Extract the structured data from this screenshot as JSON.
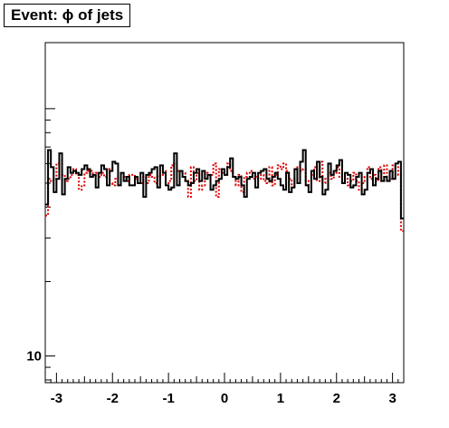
{
  "chart_data": {
    "type": "line",
    "title": "Event: ϕ of jets",
    "xlabel": "",
    "ylabel": "",
    "xlim": [
      -3.2,
      3.2
    ],
    "yscale": "log",
    "ylim": [
      7.8,
      185
    ],
    "xticks": [
      -3,
      -2,
      -1,
      0,
      1,
      2,
      3
    ],
    "xtick_labels": [
      "-3",
      "-2",
      "-1",
      "0",
      "1",
      "2",
      "3"
    ],
    "yticks": [
      10
    ],
    "ytick_labels": [
      "10"
    ],
    "grid": false,
    "series": [
      {
        "style": "solid",
        "color": "#000000",
        "bin_edges_from": -3.2,
        "bin_width": 0.1,
        "values": [
          41,
          68,
          58,
          46,
          52,
          66,
          45,
          52,
          58,
          55,
          56,
          55,
          54,
          57,
          59,
          57,
          53,
          54,
          48,
          55,
          59,
          57,
          49,
          56,
          61,
          60,
          49,
          55,
          51,
          53,
          49,
          49,
          53,
          50,
          55,
          44,
          54,
          55,
          57,
          58,
          48,
          59,
          55,
          49,
          47,
          48,
          66,
          49,
          56,
          53,
          51,
          49,
          50,
          55,
          57,
          51,
          56,
          52,
          54,
          47,
          49,
          51,
          52,
          57,
          54,
          58,
          63,
          53,
          52,
          53,
          49,
          44,
          52,
          53,
          55,
          48,
          55,
          56,
          57,
          52,
          51,
          53,
          55,
          52,
          49,
          47,
          55,
          46,
          48,
          57,
          50,
          61,
          68,
          49,
          46,
          56,
          52,
          61,
          53,
          45,
          47,
          60,
          54,
          56,
          59,
          62,
          50,
          55,
          54,
          48,
          49,
          53,
          55,
          45,
          47,
          55,
          57,
          49,
          52,
          56,
          51,
          53,
          51,
          56,
          52,
          60,
          61,
          36
        ]
      },
      {
        "style": "dotted",
        "color": "#dd0000",
        "bin_edges_from": -3.2,
        "bin_width": 0.1,
        "values": [
          37,
          52,
          51,
          52,
          60,
          62,
          54,
          51,
          52,
          54,
          57,
          54,
          47,
          49,
          55,
          56,
          56,
          53,
          55,
          53,
          55,
          53,
          57,
          50,
          49,
          52,
          53,
          53,
          53,
          51,
          54,
          54,
          52,
          50,
          50,
          53,
          50,
          54,
          53,
          50,
          53,
          54,
          56,
          50,
          51,
          59,
          60,
          56,
          53,
          55,
          51,
          44,
          58,
          51,
          55,
          47,
          49,
          55,
          53,
          54,
          60,
          44,
          57,
          55,
          54,
          60,
          56,
          53,
          49,
          54,
          46,
          53,
          55,
          56,
          52,
          53,
          52,
          54,
          51,
          50,
          58,
          49,
          54,
          59,
          57,
          60,
          56,
          52,
          48,
          52,
          58,
          56,
          57,
          51,
          49,
          54,
          58,
          51,
          61,
          50,
          52,
          55,
          52,
          55,
          58,
          53,
          51,
          52,
          49,
          51,
          55,
          51,
          47,
          50,
          53,
          58,
          52,
          54,
          51,
          58,
          51,
          59,
          53,
          52,
          59,
          58,
          54,
          32
        ]
      }
    ]
  }
}
